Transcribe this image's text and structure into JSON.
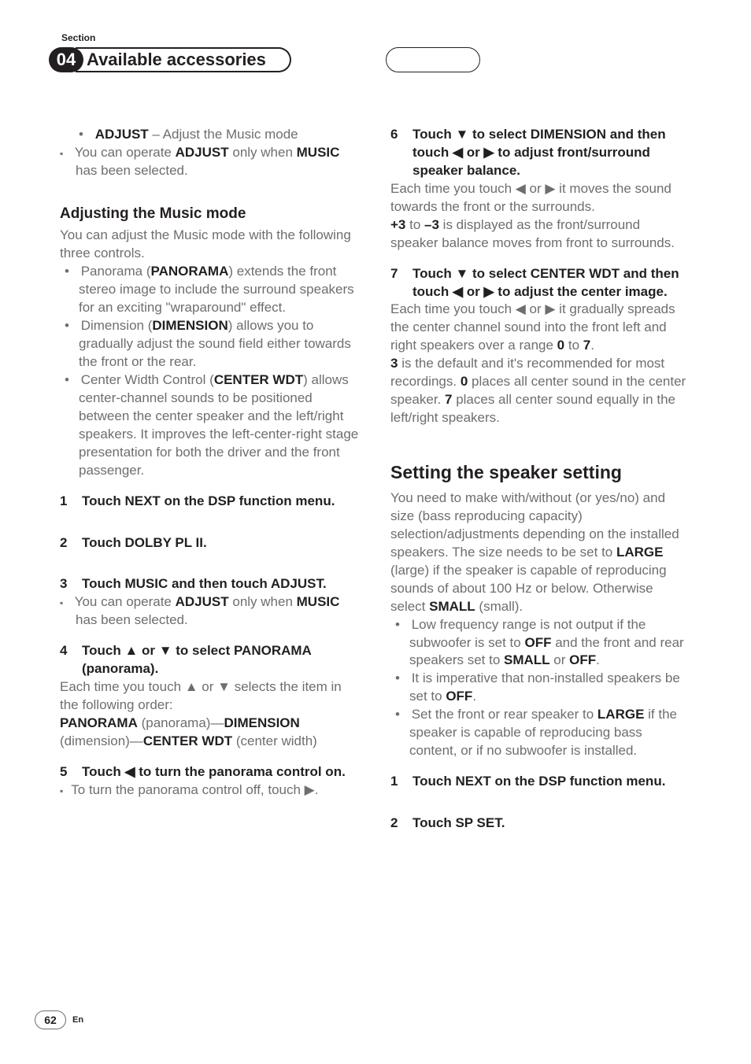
{
  "header": {
    "section_label": "Section",
    "section_number": "04",
    "title": "Available accessories"
  },
  "col1": {
    "adjust_bullet_pre": "ADJUST",
    "adjust_bullet_post": " – Adjust the Music mode",
    "adjust_note_1": "You can operate ",
    "adjust_note_b1": "ADJUST",
    "adjust_note_2": " only when ",
    "adjust_note_b2": "MUSIC",
    "adjust_note_3": " has been selected.",
    "h_music": "Adjusting the Music mode",
    "music_intro": "You can adjust the Music mode with the following three controls.",
    "pan_1": "Panorama (",
    "pan_b": "PANORAMA",
    "pan_2": ") extends the front stereo image to include the surround speakers for an exciting \"wraparound\" effect.",
    "dim_1": "Dimension (",
    "dim_b": "DIMENSION",
    "dim_2": ") allows you to gradually adjust the sound field either towards the front or the rear.",
    "cwt_1": "Center Width Control (",
    "cwt_b": "CENTER WDT",
    "cwt_2": ") allows center-channel sounds to be positioned between the center speaker and the left/right speakers. It improves the left-center-right stage presentation for both the driver and the front passenger.",
    "s1": "Touch NEXT on the DSP function menu.",
    "s2": "Touch DOLBY PL II.",
    "s3": "Touch MUSIC and then touch ADJUST.",
    "s3_note_1": "You can operate ",
    "s3_note_b1": "ADJUST",
    "s3_note_2": " only when ",
    "s3_note_b2": "MUSIC",
    "s3_note_3": " has been selected.",
    "s4": "Touch ▲ or ▼ to select PANORAMA (panorama).",
    "s4_body": "Each time you touch ▲ or ▼ selects the item in the following order:",
    "s4_seq_b1": "PANORAMA",
    "s4_seq_1": " (panorama)—",
    "s4_seq_b2": "DIMENSION",
    "s4_seq_2": " (dimension)—",
    "s4_seq_b3": "CENTER WDT",
    "s4_seq_3": " (center width)",
    "s5": "Touch ◀ to turn the panorama control on.",
    "s5_note": "To turn the panorama control off, touch ▶."
  },
  "col2": {
    "s6": "Touch ▼ to select DIMENSION and then touch ◀ or ▶ to adjust front/surround speaker balance.",
    "s6_body_1": "Each time you touch ◀ or ▶ it moves the sound towards the front or the surrounds.",
    "s6_body_b1": "+3",
    "s6_body_2": " to ",
    "s6_body_b2": "–3",
    "s6_body_3": " is displayed as the front/surround speaker balance moves from front to surrounds.",
    "s7": "Touch ▼ to select CENTER WDT and then touch ◀ or ▶ to adjust the center image.",
    "s7_body_1": "Each time you touch ◀ or ▶ it gradually spreads the center channel sound into the front left and right speakers over a range ",
    "s7_body_b0": "0",
    "s7_body_2": " to ",
    "s7_body_b7": "7",
    "s7_body_3": ".",
    "s7_body_b3": "3",
    "s7_body_4": " is the default and it's recommended for most recordings. ",
    "s7_body_b0b": "0",
    "s7_body_5": " places all center sound in the center speaker. ",
    "s7_body_b7b": "7",
    "s7_body_6": " places all center sound equally in the left/right speakers.",
    "h_speaker": "Setting the speaker setting",
    "sp_intro_1": "You need to make with/without (or yes/no) and size (bass reproducing capacity) selection/adjustments depending on the installed speakers. The size needs to be set to ",
    "sp_intro_b1": "LARGE",
    "sp_intro_2": " (large) if the speaker is capable of reproducing sounds of about 100 Hz or below. Otherwise select ",
    "sp_intro_b2": "SMALL",
    "sp_intro_3": " (small).",
    "sp_li1_1": "Low frequency range is not output if the subwoofer is set to ",
    "sp_li1_b1": "OFF",
    "sp_li1_2": " and the front and rear speakers set to ",
    "sp_li1_b2": "SMALL",
    "sp_li1_3": " or ",
    "sp_li1_b3": "OFF",
    "sp_li1_4": ".",
    "sp_li2_1": "It is imperative that non-installed speakers be set to ",
    "sp_li2_b1": "OFF",
    "sp_li2_2": ".",
    "sp_li3_1": "Set the front or rear speaker to ",
    "sp_li3_b1": "LARGE",
    "sp_li3_2": " if the speaker is capable of reproducing bass content, or if no subwoofer is installed.",
    "sp_s1": "Touch NEXT on the DSP function menu.",
    "sp_s2": "Touch SP SET."
  },
  "footer": {
    "page": "62",
    "lang": "En"
  }
}
